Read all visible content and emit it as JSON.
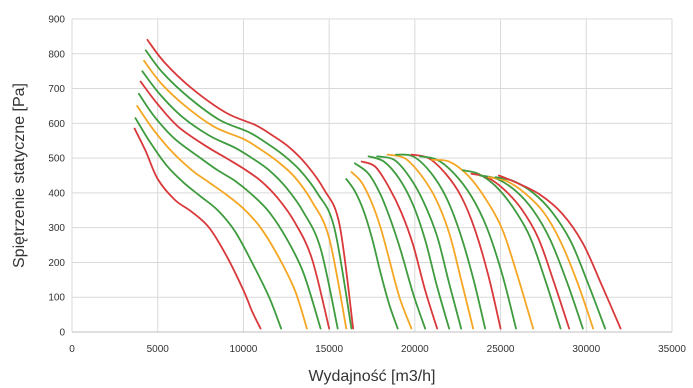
{
  "chart_data": {
    "type": "line",
    "title": "",
    "xlabel": "Wydajność [m3/h]",
    "ylabel": "Spiętrzenie statyczne [Pa]",
    "xlim": [
      0,
      35000
    ],
    "ylim": [
      0,
      900
    ],
    "xticks": [
      0,
      5000,
      10000,
      15000,
      20000,
      25000,
      30000,
      35000
    ],
    "yticks": [
      0,
      100,
      200,
      300,
      400,
      500,
      600,
      700,
      800,
      900
    ],
    "grid": true,
    "legend": "none",
    "colors": {
      "red": "#d9393b",
      "green": "#3e9b3e",
      "orange": "#f5a623"
    },
    "series": [
      {
        "color": "red",
        "x": [
          3650,
          4300,
          5000,
          6000,
          7000,
          8000,
          9000,
          10000,
          10500,
          11000
        ],
        "y": [
          585,
          520,
          440,
          380,
          345,
          300,
          220,
          120,
          60,
          10
        ]
      },
      {
        "color": "green",
        "x": [
          3700,
          4500,
          5500,
          6500,
          7500,
          8500,
          9500,
          10500,
          11500,
          12200
        ],
        "y": [
          615,
          550,
          480,
          430,
          390,
          350,
          290,
          200,
          100,
          10
        ]
      },
      {
        "color": "orange",
        "x": [
          3800,
          4700,
          5800,
          7000,
          8000,
          9000,
          10000,
          11000,
          12000,
          13000,
          13700
        ],
        "y": [
          650,
          585,
          520,
          465,
          430,
          395,
          355,
          300,
          220,
          120,
          10
        ]
      },
      {
        "color": "green",
        "x": [
          3900,
          4800,
          6000,
          7500,
          8500,
          9500,
          10500,
          11500,
          12500,
          13500,
          14500
        ],
        "y": [
          685,
          620,
          555,
          500,
          465,
          435,
          395,
          345,
          270,
          170,
          10
        ]
      },
      {
        "color": "red",
        "x": [
          4000,
          5000,
          6200,
          7800,
          9000,
          10000,
          11000,
          12000,
          13000,
          14000,
          15000
        ],
        "y": [
          720,
          655,
          590,
          535,
          500,
          470,
          435,
          385,
          315,
          210,
          10
        ]
      },
      {
        "color": "green",
        "x": [
          4100,
          5100,
          6400,
          8000,
          9500,
          10500,
          11500,
          12500,
          13500,
          14500,
          15500
        ],
        "y": [
          750,
          685,
          620,
          565,
          530,
          500,
          465,
          415,
          345,
          240,
          10
        ]
      },
      {
        "color": "orange",
        "x": [
          4200,
          5200,
          6600,
          8300,
          10000,
          11000,
          12000,
          13000,
          14000,
          15000,
          16000
        ],
        "y": [
          780,
          715,
          650,
          590,
          555,
          525,
          490,
          445,
          375,
          270,
          10
        ]
      },
      {
        "color": "green",
        "x": [
          4300,
          5300,
          6800,
          8600,
          10300,
          11300,
          12300,
          13300,
          14300,
          15300,
          16300
        ],
        "y": [
          810,
          745,
          675,
          610,
          575,
          545,
          510,
          465,
          400,
          300,
          10
        ]
      },
      {
        "color": "red",
        "x": [
          4400,
          5400,
          7000,
          9000,
          10700,
          11700,
          12700,
          13700,
          14700,
          15600,
          16400
        ],
        "y": [
          840,
          775,
          700,
          630,
          595,
          565,
          530,
          480,
          410,
          310,
          10
        ]
      },
      {
        "color": "green",
        "x": [
          16000,
          16500,
          17000,
          17500,
          18000,
          18500,
          19000
        ],
        "y": [
          440,
          405,
          350,
          270,
          170,
          80,
          10
        ]
      },
      {
        "color": "orange",
        "x": [
          16300,
          16900,
          17500,
          18000,
          18500,
          19100,
          19800
        ],
        "y": [
          460,
          430,
          370,
          300,
          210,
          100,
          10
        ]
      },
      {
        "color": "green",
        "x": [
          16500,
          17300,
          18000,
          18600,
          19200,
          19900,
          20600
        ],
        "y": [
          485,
          455,
          395,
          320,
          230,
          110,
          10
        ]
      },
      {
        "color": "red",
        "x": [
          16900,
          17700,
          18500,
          19200,
          19900,
          20600,
          21300
        ],
        "y": [
          490,
          475,
          415,
          345,
          250,
          120,
          10
        ]
      },
      {
        "color": "green",
        "x": [
          17300,
          18200,
          19100,
          19900,
          20600,
          21300,
          22000
        ],
        "y": [
          505,
          490,
          440,
          365,
          265,
          130,
          10
        ]
      },
      {
        "color": "green",
        "x": [
          17800,
          18800,
          19700,
          20500,
          21300,
          22000,
          22700
        ],
        "y": [
          505,
          495,
          445,
          375,
          275,
          140,
          10
        ]
      },
      {
        "color": "orange",
        "x": [
          18400,
          19400,
          20300,
          21200,
          22000,
          22700,
          23400
        ],
        "y": [
          510,
          500,
          455,
          385,
          285,
          150,
          10
        ]
      },
      {
        "color": "green",
        "x": [
          18900,
          19900,
          20900,
          21800,
          22600,
          23400,
          24100
        ],
        "y": [
          510,
          505,
          460,
          390,
          290,
          155,
          10
        ]
      },
      {
        "color": "red",
        "x": [
          19800,
          20800,
          21800,
          22700,
          23500,
          24300,
          25000
        ],
        "y": [
          510,
          500,
          455,
          390,
          295,
          160,
          10
        ]
      },
      {
        "color": "green",
        "x": [
          20300,
          21300,
          22300,
          23300,
          24200,
          25100,
          25900
        ],
        "y": [
          505,
          495,
          455,
          390,
          300,
          165,
          10
        ]
      },
      {
        "color": "orange",
        "x": [
          21000,
          22000,
          23100,
          24100,
          25100,
          26000,
          26900
        ],
        "y": [
          495,
          490,
          450,
          385,
          295,
          160,
          10
        ]
      },
      {
        "color": "green",
        "x": [
          22800,
          23700,
          24700,
          25700,
          26700,
          27600,
          28500
        ],
        "y": [
          465,
          455,
          420,
          360,
          275,
          150,
          10
        ]
      },
      {
        "color": "red",
        "x": [
          23300,
          24200,
          25200,
          26200,
          27200,
          28100,
          29000
        ],
        "y": [
          455,
          445,
          410,
          355,
          270,
          145,
          10
        ]
      },
      {
        "color": "green",
        "x": [
          23800,
          24800,
          25900,
          26900,
          27900,
          28900,
          29800
        ],
        "y": [
          450,
          440,
          405,
          350,
          265,
          140,
          10
        ]
      },
      {
        "color": "orange",
        "x": [
          24300,
          25300,
          26400,
          27500,
          28500,
          29500,
          30400
        ],
        "y": [
          445,
          435,
          400,
          345,
          260,
          140,
          10
        ]
      },
      {
        "color": "green",
        "x": [
          24700,
          25700,
          26900,
          28000,
          29100,
          30100,
          31100
        ],
        "y": [
          445,
          435,
          400,
          345,
          260,
          140,
          10
        ]
      },
      {
        "color": "red",
        "x": [
          24900,
          25900,
          27300,
          28600,
          29800,
          30900,
          32000
        ],
        "y": [
          450,
          430,
          395,
          340,
          255,
          135,
          10
        ]
      }
    ]
  }
}
